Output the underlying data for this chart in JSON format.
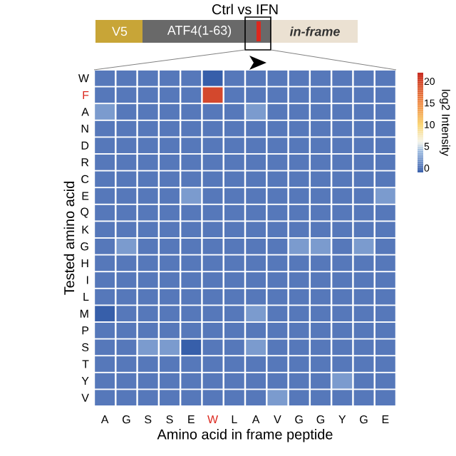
{
  "chart_data": {
    "type": "heatmap",
    "title": "Ctrl vs IFN",
    "xlabel": "Amino acid in frame peptide",
    "ylabel": "Tested amino acid",
    "clabel": "log2 Intensity",
    "annotations": [
      "V5",
      "ATF4(1-63)",
      "in-frame"
    ],
    "categories": [
      "A",
      "G",
      "S",
      "S",
      "E",
      "W",
      "L",
      "A",
      "V",
      "G",
      "G",
      "Y",
      "G",
      "E"
    ],
    "y_categories": [
      "W",
      "F",
      "A",
      "N",
      "D",
      "R",
      "C",
      "E",
      "Q",
      "K",
      "G",
      "H",
      "I",
      "L",
      "M",
      "P",
      "S",
      "T",
      "Y",
      "V"
    ],
    "cells": [
      [
        0,
        0,
        0,
        0,
        0,
        -1,
        0,
        0,
        0,
        0,
        0,
        0,
        0,
        0
      ],
      [
        0,
        0,
        0,
        0,
        0,
        20,
        0,
        0,
        0,
        0,
        0,
        0,
        0,
        0
      ],
      [
        2,
        0,
        0,
        0,
        0,
        0,
        0,
        2,
        0,
        0,
        0,
        0,
        0,
        0
      ],
      [
        0,
        0,
        0,
        0,
        0,
        0,
        0,
        0,
        0,
        0,
        0,
        0,
        0,
        0
      ],
      [
        0,
        0,
        0,
        0,
        0,
        0,
        0,
        0,
        0,
        0,
        0,
        0,
        0,
        0
      ],
      [
        0,
        0,
        0,
        0,
        0,
        0,
        0,
        0,
        0,
        0,
        0,
        0,
        0,
        0
      ],
      [
        0,
        0,
        0,
        0,
        0,
        0,
        0,
        0,
        0,
        0,
        0,
        0,
        0,
        0
      ],
      [
        0,
        0,
        0,
        0,
        2,
        0,
        0,
        0,
        0,
        0,
        0,
        0,
        0,
        2
      ],
      [
        0,
        0,
        0,
        0,
        0,
        0,
        0,
        0,
        0,
        0,
        0,
        0,
        0,
        0
      ],
      [
        0,
        0,
        0,
        0,
        0,
        0,
        0,
        0,
        0,
        0,
        0,
        0,
        0,
        0
      ],
      [
        0,
        2,
        0,
        0,
        0,
        0,
        0,
        0,
        0,
        2,
        2,
        0,
        2,
        0
      ],
      [
        0,
        0,
        0,
        0,
        0,
        0,
        0,
        0,
        0,
        0,
        0,
        0,
        0,
        0
      ],
      [
        0,
        0,
        0,
        0,
        0,
        0,
        0,
        0,
        0,
        0,
        0,
        0,
        0,
        0
      ],
      [
        0,
        0,
        0,
        0,
        0,
        0,
        0,
        0,
        0,
        0,
        0,
        0,
        0,
        0
      ],
      [
        -1,
        0,
        0,
        0,
        0,
        0,
        0,
        2,
        0,
        0,
        0,
        0,
        0,
        0
      ],
      [
        0,
        0,
        0,
        0,
        0,
        0,
        0,
        0,
        0,
        0,
        0,
        0,
        0,
        0
      ],
      [
        0,
        0,
        2,
        2,
        -1,
        0,
        0,
        2,
        0,
        0,
        0,
        0,
        0,
        0
      ],
      [
        0,
        0,
        0,
        0,
        0,
        0,
        0,
        0,
        0,
        0,
        0,
        0,
        0,
        0
      ],
      [
        0,
        0,
        0,
        0,
        0,
        0,
        0,
        0,
        0,
        0,
        0,
        2,
        0,
        0
      ],
      [
        0,
        0,
        0,
        0,
        0,
        0,
        0,
        0,
        2,
        0,
        0,
        0,
        0,
        0
      ]
    ],
    "clim": [
      -1,
      22
    ],
    "cticks": [
      0,
      5,
      10,
      15,
      20
    ]
  }
}
